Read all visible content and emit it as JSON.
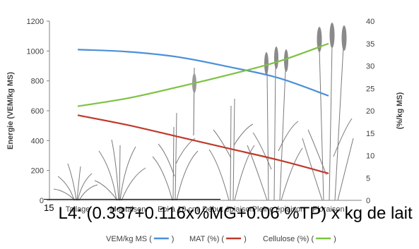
{
  "chart_data": {
    "type": "line",
    "categories": [
      "Tallage",
      "Montaison",
      "Epi à 10 cm",
      "Début épiaison",
      "Pleine épiaison",
      "Floraison"
    ],
    "left_axis": {
      "label": "Energie (VEM/kg MS)",
      "ylim": [
        0,
        1200
      ],
      "ticks": [
        0,
        200,
        400,
        600,
        800,
        1000,
        1200
      ]
    },
    "right_axis": {
      "label": "(%/kg MS)",
      "ylim": [
        0,
        40
      ],
      "ticks": [
        0,
        5,
        10,
        15,
        20,
        25,
        30,
        35,
        40
      ]
    },
    "series": [
      {
        "name": "VEM/kg MS",
        "legend_label": "VEM/kg MS (",
        "axis": "left",
        "color": "#4a90d9",
        "values": [
          1010,
          995,
          960,
          895,
          820,
          700
        ]
      },
      {
        "name": "MAT (%)",
        "legend_label": "MAT (%) (",
        "axis": "right",
        "color": "#c0392b",
        "values": [
          19.0,
          16.8,
          14.2,
          11.6,
          9.0,
          6.0
        ]
      },
      {
        "name": "Cellulose (%)",
        "legend_label": "Cellulose (%) (",
        "axis": "right",
        "color": "#7dc242",
        "values": [
          21.0,
          22.8,
          25.3,
          28.0,
          31.0,
          35.0
        ]
      }
    ],
    "legend_close": ")",
    "grid": false,
    "legend_position": "bottom"
  },
  "footnote": {
    "marker": "15",
    "text": "L4: (0.337+0.116x%MG+0.06 %TP) x kg de lait"
  }
}
